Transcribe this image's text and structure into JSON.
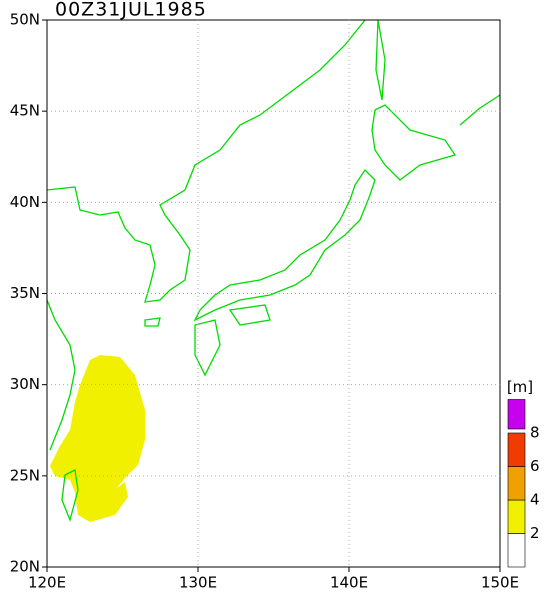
{
  "map": {
    "title": "00Z31JUL1985",
    "lat_range": [
      20,
      50
    ],
    "lon_range": [
      120,
      150
    ],
    "lat_ticks": [
      {
        "value": 20,
        "label": "20N"
      },
      {
        "value": 25,
        "label": "25N"
      },
      {
        "value": 30,
        "label": "30N"
      },
      {
        "value": 35,
        "label": "35N"
      },
      {
        "value": 40,
        "label": "40N"
      },
      {
        "value": 45,
        "label": "45N"
      },
      {
        "value": 50,
        "label": "50N"
      }
    ],
    "lon_ticks": [
      {
        "value": 120,
        "label": "120E"
      },
      {
        "value": 130,
        "label": "130E"
      },
      {
        "value": 140,
        "label": "140E"
      },
      {
        "value": 150,
        "label": "150E"
      }
    ],
    "grid": true,
    "colorbar": {
      "unit": "[m]",
      "levels": [
        2,
        4,
        6,
        8
      ],
      "colors": [
        "#ffffff",
        "#f0f000",
        "#f0a000",
        "#f03c00",
        "#c800f0"
      ]
    }
  }
}
